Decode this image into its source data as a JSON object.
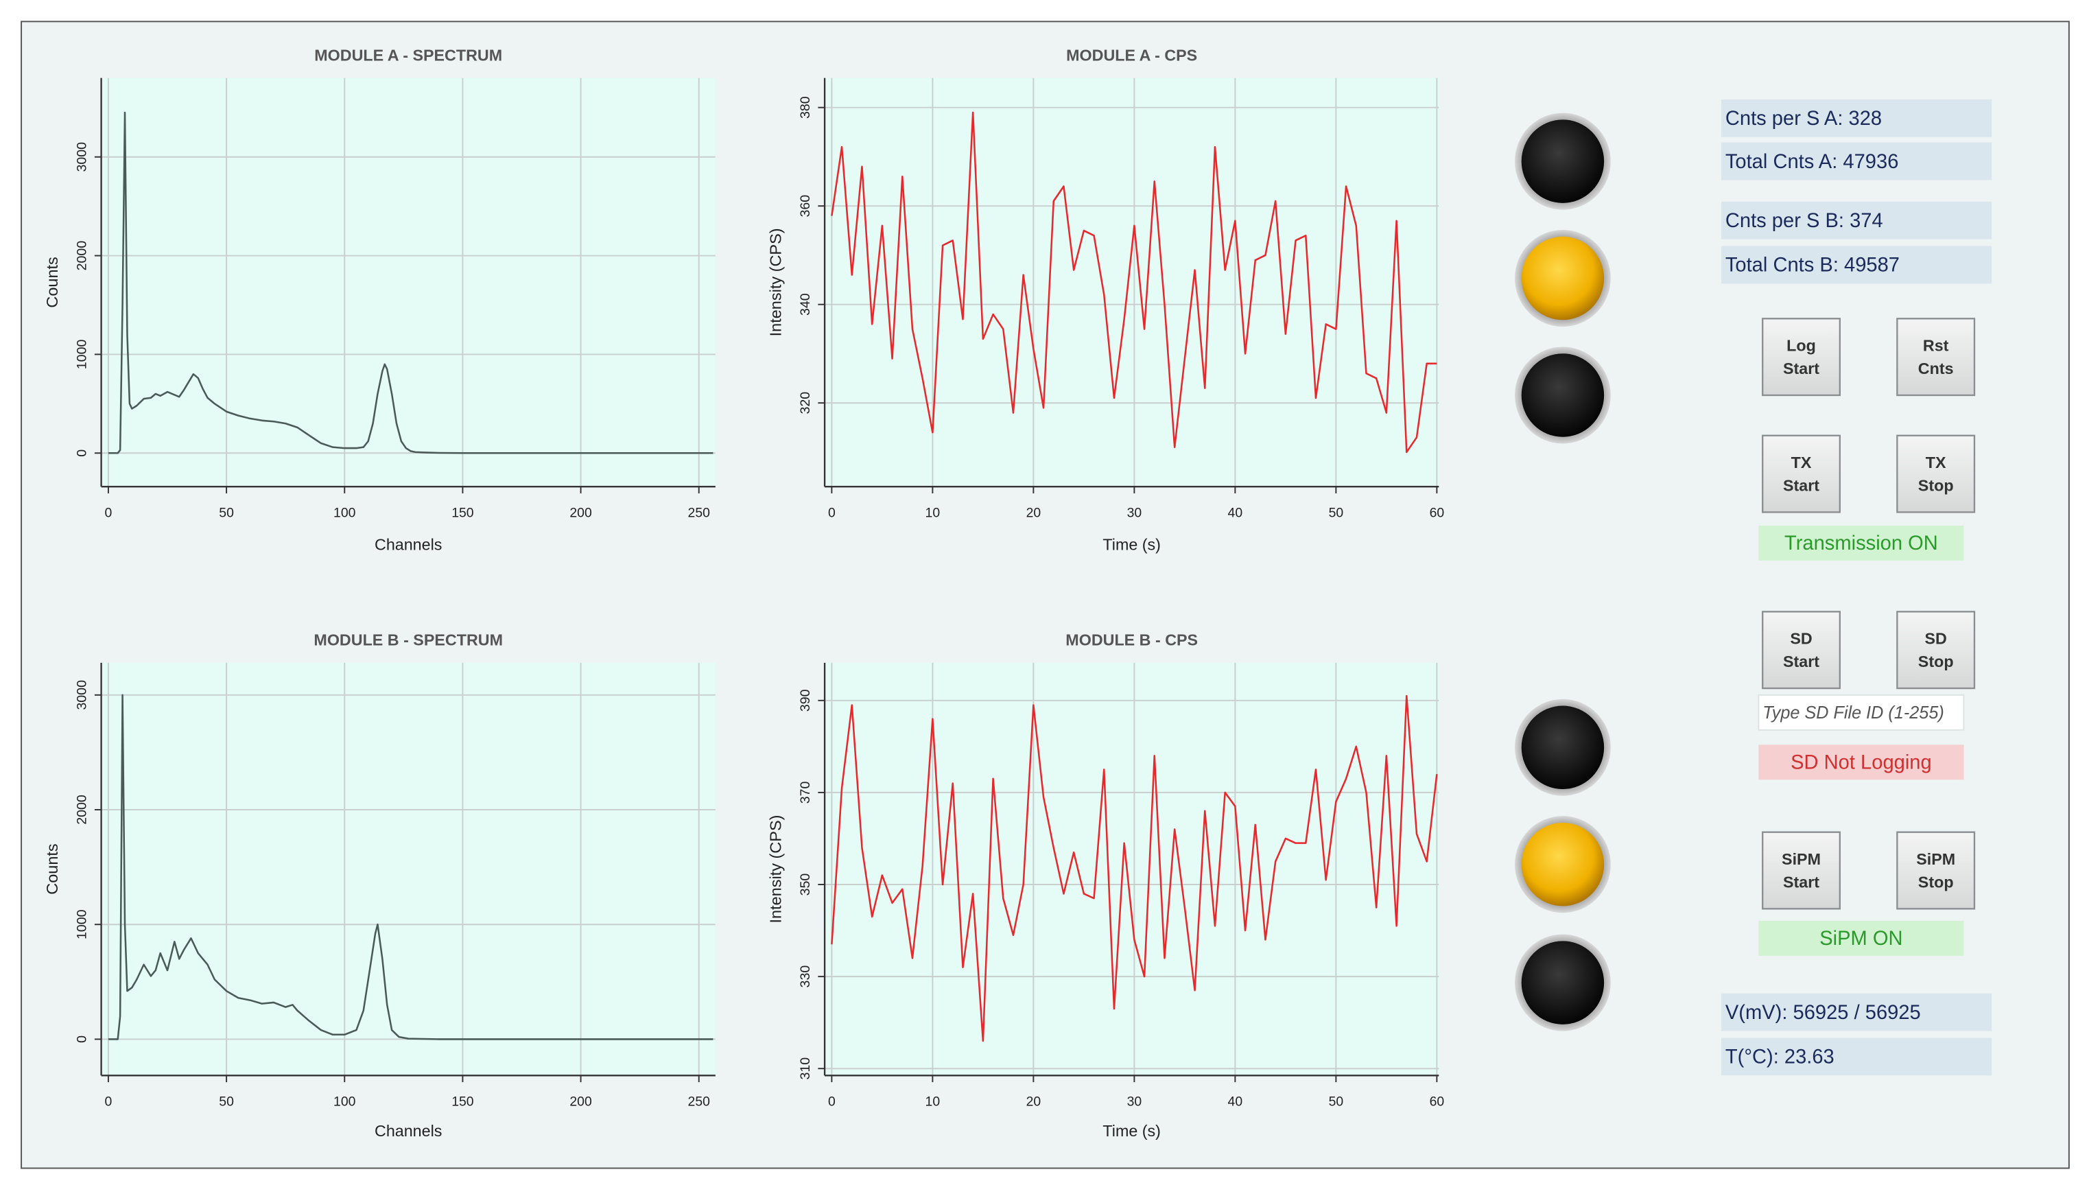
{
  "chart_data": [
    {
      "type": "line",
      "title": "MODULE A - SPECTRUM",
      "x_label": "Channels",
      "y_label": "Counts",
      "color": "#4a5a55",
      "grid": true,
      "x": [
        0,
        4,
        5,
        6,
        7,
        8,
        9,
        10,
        12,
        15,
        18,
        20,
        22,
        25,
        28,
        30,
        32,
        34,
        36,
        38,
        40,
        42,
        45,
        50,
        55,
        60,
        65,
        70,
        75,
        80,
        85,
        90,
        95,
        100,
        105,
        108,
        110,
        112,
        114,
        116,
        117,
        118,
        120,
        122,
        124,
        126,
        128,
        130,
        135,
        140,
        150,
        200,
        256
      ],
      "values": [
        0,
        0,
        30,
        1500,
        3450,
        1200,
        500,
        450,
        480,
        550,
        560,
        600,
        580,
        620,
        590,
        570,
        640,
        720,
        800,
        760,
        650,
        560,
        500,
        420,
        380,
        350,
        330,
        320,
        300,
        260,
        180,
        100,
        60,
        50,
        50,
        60,
        120,
        300,
        600,
        830,
        900,
        850,
        600,
        300,
        120,
        50,
        20,
        10,
        5,
        2,
        0,
        0,
        0
      ],
      "xlim": [
        -3,
        257
      ],
      "ylim": [
        -340,
        3800
      ],
      "xticks": [
        0,
        50,
        100,
        150,
        200,
        250
      ],
      "yticks": [
        0,
        1000,
        2000,
        3000
      ]
    },
    {
      "type": "line",
      "title": "MODULE A - CPS",
      "x_label": "Time (s)",
      "y_label": "Intensity (CPS)",
      "color": "#e8282a",
      "grid": true,
      "x": [
        0,
        1,
        2,
        3,
        4,
        5,
        6,
        7,
        8,
        9,
        10,
        11,
        12,
        13,
        14,
        15,
        16,
        17,
        18,
        19,
        20,
        21,
        22,
        23,
        24,
        25,
        26,
        27,
        28,
        29,
        30,
        31,
        32,
        33,
        34,
        35,
        36,
        37,
        38,
        39,
        40,
        41,
        42,
        43,
        44,
        45,
        46,
        47,
        48,
        49,
        50,
        51,
        52,
        53,
        54,
        55,
        56,
        57,
        58,
        59,
        60
      ],
      "values": [
        358,
        372,
        346,
        368,
        336,
        356,
        329,
        366,
        335,
        325,
        314,
        352,
        353,
        337,
        379,
        333,
        338,
        335,
        318,
        346,
        331,
        319,
        361,
        364,
        347,
        355,
        354,
        342,
        321,
        337,
        356,
        335,
        365,
        340,
        311,
        329,
        347,
        323,
        372,
        347,
        357,
        330,
        349,
        350,
        361,
        334,
        353,
        354,
        321,
        336,
        335,
        364,
        356,
        326,
        325,
        318,
        357,
        310,
        313,
        328,
        328
      ],
      "xlim": [
        -0.7,
        60.2
      ],
      "ylim": [
        303,
        386
      ],
      "xticks": [
        0,
        10,
        20,
        30,
        40,
        50,
        60
      ],
      "yticks": [
        320,
        340,
        360,
        380
      ]
    },
    {
      "type": "line",
      "title": "MODULE B - SPECTRUM",
      "x_label": "Channels",
      "y_label": "Counts",
      "color": "#4a5a55",
      "grid": true,
      "x": [
        0,
        4,
        5,
        6,
        7,
        8,
        10,
        12,
        15,
        18,
        20,
        22,
        25,
        28,
        30,
        32,
        35,
        38,
        40,
        42,
        45,
        50,
        55,
        60,
        65,
        70,
        75,
        78,
        80,
        85,
        90,
        95,
        100,
        105,
        108,
        111,
        113,
        114,
        116,
        118,
        120,
        123,
        127,
        140,
        200,
        256
      ],
      "values": [
        0,
        0,
        200,
        3000,
        1000,
        420,
        450,
        520,
        650,
        550,
        600,
        750,
        600,
        850,
        700,
        780,
        880,
        750,
        700,
        650,
        520,
        420,
        360,
        340,
        310,
        320,
        280,
        300,
        250,
        160,
        80,
        40,
        40,
        80,
        250,
        650,
        920,
        1000,
        700,
        300,
        80,
        20,
        5,
        0,
        0,
        0
      ],
      "xlim": [
        -3,
        257
      ],
      "ylim": [
        -316,
        3281
      ],
      "xticks": [
        0,
        50,
        100,
        150,
        200,
        250
      ],
      "yticks": [
        0,
        1000,
        2000,
        3000
      ]
    },
    {
      "type": "line",
      "title": "MODULE B - CPS",
      "x_label": "Time (s)",
      "y_label": "Intensity (CPS)",
      "color": "#e8282a",
      "grid": true,
      "x": [
        0,
        1,
        2,
        3,
        4,
        5,
        6,
        7,
        8,
        9,
        10,
        11,
        12,
        13,
        14,
        15,
        16,
        17,
        18,
        19,
        20,
        21,
        22,
        23,
        24,
        25,
        26,
        27,
        28,
        29,
        30,
        31,
        32,
        33,
        34,
        35,
        36,
        37,
        38,
        39,
        40,
        41,
        42,
        43,
        44,
        45,
        46,
        47,
        48,
        49,
        50,
        51,
        52,
        53,
        54,
        55,
        56,
        57,
        58,
        59,
        60
      ],
      "values": [
        337,
        371,
        389,
        358,
        343,
        352,
        346,
        349,
        334,
        354,
        386,
        350,
        372,
        332,
        348,
        316,
        373,
        347,
        339,
        350,
        389,
        369,
        358,
        348,
        357,
        348,
        347,
        375,
        323,
        359,
        338,
        330,
        378,
        334,
        362,
        345,
        327,
        366,
        341,
        370,
        367,
        340,
        363,
        338,
        355,
        360,
        359,
        359,
        375,
        351,
        368,
        373,
        380,
        370,
        345,
        378,
        341,
        391,
        361,
        355,
        374
      ],
      "xlim": [
        -0.7,
        60.2
      ],
      "ylim": [
        308.5,
        398.2
      ],
      "xticks": [
        0,
        10,
        20,
        30,
        40,
        50,
        60
      ],
      "yticks": [
        310,
        330,
        350,
        370,
        390
      ]
    }
  ],
  "leds": [
    "off",
    "on",
    "off",
    "off",
    "on",
    "off"
  ],
  "readouts": [
    "Cnts per S A: 328",
    "Total Cnts A: 47936",
    "Cnts per S B: 374",
    "Total Cnts B: 49587",
    "V(mV): 56925 / 56925",
    "T(°C): 23.63"
  ],
  "buttons": [
    {
      "lines": [
        "Log",
        "Start"
      ]
    },
    {
      "lines": [
        "Rst",
        "Cnts"
      ]
    },
    {
      "lines": [
        "TX",
        "Start"
      ]
    },
    {
      "lines": [
        "TX",
        "Stop"
      ]
    },
    {
      "lines": [
        "SD",
        "Start"
      ]
    },
    {
      "lines": [
        "SD",
        "Stop"
      ]
    },
    {
      "lines": [
        "SiPM",
        "Start"
      ]
    },
    {
      "lines": [
        "SiPM",
        "Stop"
      ]
    }
  ],
  "status": [
    "Transmission ON",
    "SD Not Logging",
    "SiPM ON"
  ],
  "input_placeholder": "Type SD File ID (1-255)"
}
